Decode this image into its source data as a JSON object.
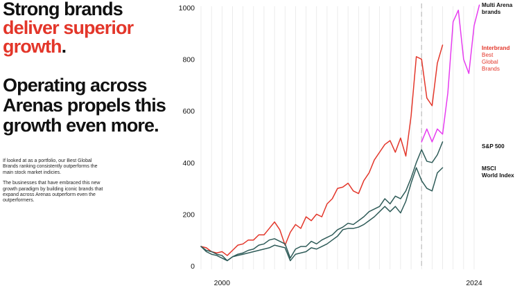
{
  "headline": {
    "line1": "Strong brands",
    "line2_red": "deliver superior",
    "line3_red": "growth",
    "line3_dot": "."
  },
  "subhead": {
    "line1": "Operating across",
    "line2": "Arenas propels this",
    "line3": "growth even more."
  },
  "body": {
    "paragraph1": "If looked at as a portfolio, our Best Global Brands ranking consistently outperforms the main stock market indicies.",
    "paragraph2": "The businesses that have embraced this new growth paradigm by building iconic brands that expand across Arenas outperform even the outperformers."
  },
  "chart_data": {
    "type": "line",
    "x_start": 1998,
    "x_end": 2024,
    "xlim": [
      1998,
      2024
    ],
    "ylim": [
      0,
      1000
    ],
    "y_ticks": [
      0,
      200,
      400,
      600,
      800,
      1000
    ],
    "x_tick_labels": [
      {
        "x": 2000,
        "label": "2000"
      },
      {
        "x": 2024,
        "label": "2024"
      }
    ],
    "x_dashed_marker": 2019,
    "grid": "vertical",
    "points_per_year": 2,
    "series": [
      {
        "name": "Multi Arena brands",
        "label_lines": [
          "Multi Arena",
          "brands"
        ],
        "color": "#e63cf0",
        "start": 2019,
        "values": [
          480,
          530,
          480,
          530,
          510,
          670,
          945,
          990,
          800,
          745,
          930,
          1010
        ]
      },
      {
        "name": "Interbrand Best Global Brands",
        "label_lines": [
          "Interbrand",
          "Best",
          "Global",
          "Brands"
        ],
        "color": "#e3362a",
        "start": 1998,
        "values": [
          75,
          70,
          55,
          50,
          55,
          40,
          60,
          80,
          85,
          100,
          100,
          120,
          120,
          145,
          170,
          140,
          80,
          130,
          160,
          145,
          190,
          175,
          200,
          190,
          240,
          260,
          300,
          305,
          320,
          290,
          280,
          330,
          360,
          410,
          440,
          470,
          485,
          440,
          495,
          425,
          580,
          810,
          800,
          650,
          620,
          785,
          855
        ]
      },
      {
        "name": "S&P 500",
        "label_lines": [
          "S&P 500"
        ],
        "color": "#2e5b58",
        "start": 1998,
        "values": [
          75,
          60,
          55,
          45,
          40,
          20,
          35,
          45,
          50,
          60,
          65,
          80,
          85,
          100,
          105,
          95,
          85,
          30,
          65,
          75,
          75,
          95,
          85,
          100,
          110,
          120,
          140,
          150,
          165,
          160,
          175,
          190,
          210,
          220,
          230,
          260,
          240,
          270,
          260,
          290,
          340,
          400,
          450,
          405,
          400,
          430,
          480
        ]
      },
      {
        "name": "MSCI World Index",
        "label_lines": [
          "MSCI",
          "World Index"
        ],
        "color": "#2e5b58",
        "start": 1998,
        "values": [
          75,
          55,
          45,
          40,
          30,
          20,
          35,
          40,
          45,
          50,
          55,
          60,
          65,
          70,
          80,
          75,
          70,
          20,
          45,
          50,
          55,
          70,
          65,
          75,
          85,
          100,
          115,
          140,
          145,
          145,
          150,
          160,
          175,
          190,
          210,
          230,
          210,
          230,
          205,
          250,
          320,
          380,
          330,
          300,
          290,
          360,
          380
        ]
      }
    ]
  },
  "colors": {
    "accent_red": "#e3362a",
    "magenta": "#e63cf0",
    "index_green": "#2e5b58",
    "grid": "#e6e6e6"
  }
}
